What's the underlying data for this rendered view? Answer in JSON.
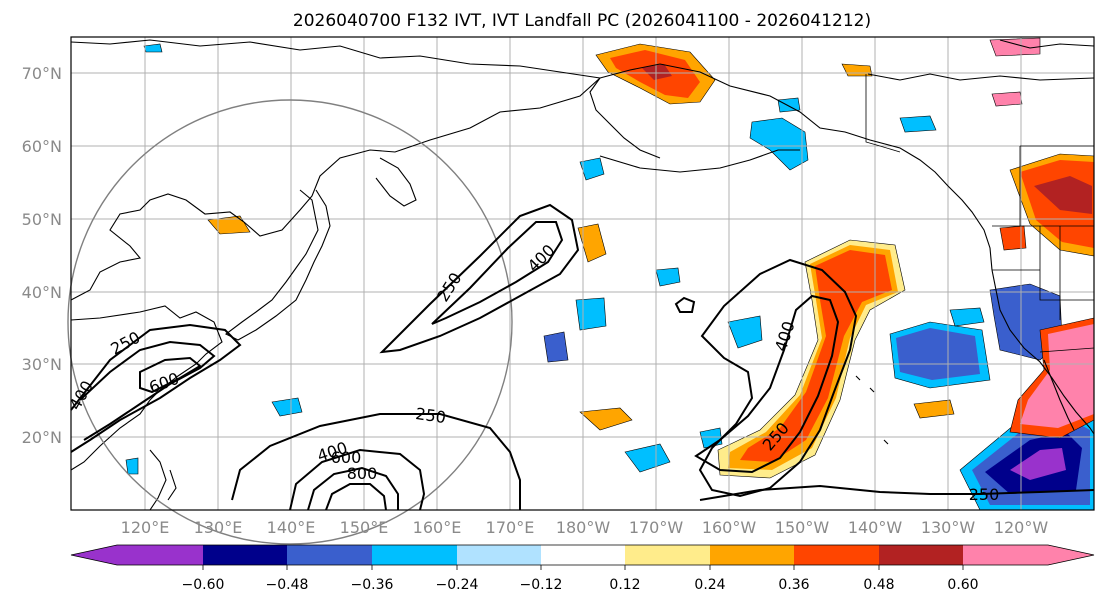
{
  "title": "2026040700 F132 IVT, IVT Landfall PC (2026041100 - 2026041212)",
  "lat_labels": [
    "70°N",
    "60°N",
    "50°N",
    "40°N",
    "30°N",
    "20°N"
  ],
  "lon_labels": [
    "120°E",
    "130°E",
    "140°E",
    "150°E",
    "160°E",
    "170°E",
    "180°W",
    "170°W",
    "160°W",
    "150°W",
    "140°W",
    "130°W",
    "120°W"
  ],
  "colorbar": {
    "ticks": [
      "−0.60",
      "−0.48",
      "−0.36",
      "−0.24",
      "−0.12",
      "0.12",
      "0.24",
      "0.36",
      "0.48",
      "0.60"
    ],
    "colors": [
      "#9932cc",
      "#00008b",
      "#3a5fcd",
      "#00bfff",
      "#b0e2ff",
      "#ffffff",
      "#ffec8b",
      "#ffa500",
      "#ff4500",
      "#b22222",
      "#ff82ab"
    ]
  },
  "contour_labels": {
    "a": "250",
    "b": "400",
    "c": "250",
    "d": "400",
    "e": "600",
    "f": "250",
    "g": "400",
    "h": "600",
    "i": "800",
    "j": "400",
    "k": "250",
    "l": "250"
  },
  "colors": {
    "contour": "#000000",
    "grid": "#b0b0b0",
    "coast": "#000000",
    "circle": "#808080"
  }
}
